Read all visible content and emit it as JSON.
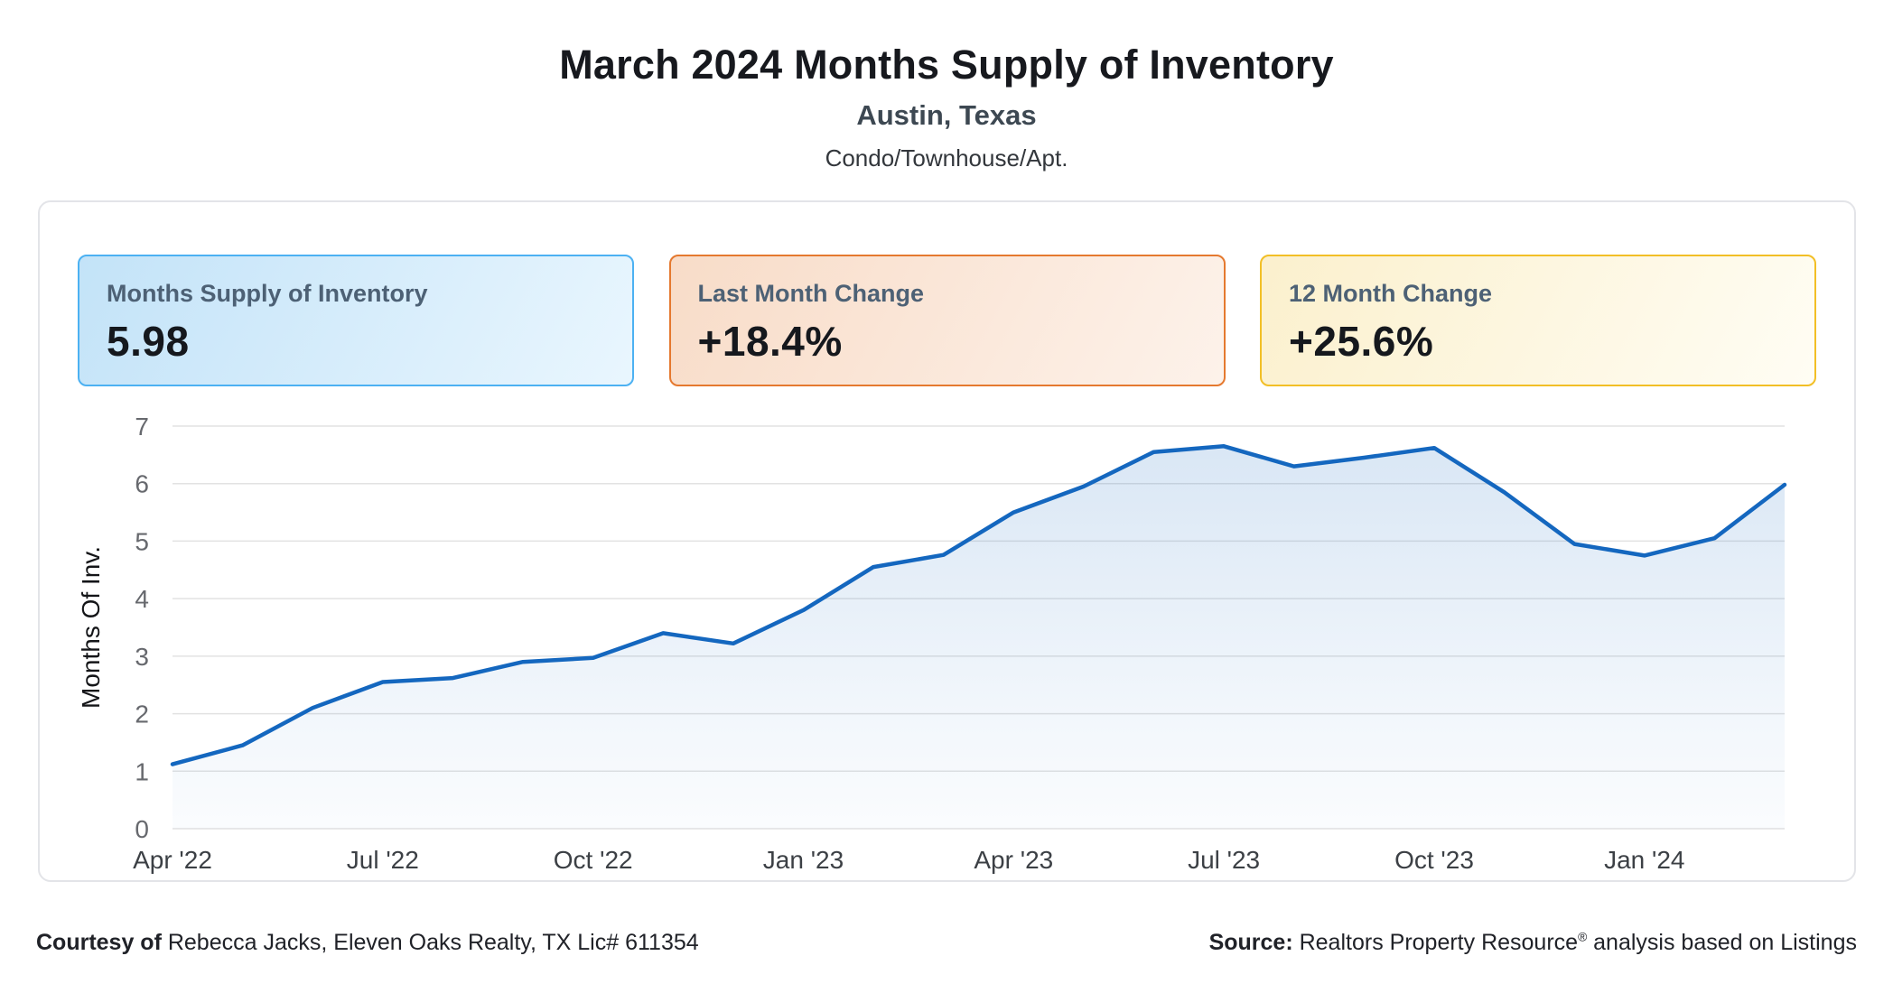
{
  "header": {
    "title": "March 2024 Months Supply of Inventory",
    "subtitle": "Austin, Texas",
    "property_type": "Condo/Townhouse/Apt."
  },
  "stats": [
    {
      "label": "Months Supply of Inventory",
      "value": "5.98"
    },
    {
      "label": "Last Month Change",
      "value": "+18.4%"
    },
    {
      "label": "12 Month Change",
      "value": "+25.6%"
    }
  ],
  "colors": {
    "accent-line": "#1467bf",
    "grid": "#e2e2e2",
    "label": "#4d6175",
    "value": "#15181d",
    "blue-border": "#4cb1f2",
    "blue-bg-1": "#c3e3f8",
    "blue-bg-2": "#e9f6fe",
    "orange-border": "#e5792f",
    "orange-bg-1": "#f8dcc8",
    "orange-bg-2": "#fdf2ea",
    "yellow-border": "#f2bf26",
    "yellow-bg-1": "#fbf0cd",
    "yellow-bg-2": "#fffdf4"
  },
  "chart_data": {
    "type": "area",
    "title": "March 2024 Months Supply of Inventory — Austin, Texas — Condo/Townhouse/Apt.",
    "x": [
      "Apr '22",
      "May '22",
      "Jun '22",
      "Jul '22",
      "Aug '22",
      "Sep '22",
      "Oct '22",
      "Nov '22",
      "Dec '22",
      "Jan '23",
      "Feb '23",
      "Mar '23",
      "Apr '23",
      "May '23",
      "Jun '23",
      "Jul '23",
      "Aug '23",
      "Sep '23",
      "Oct '23",
      "Nov '23",
      "Dec '23",
      "Jan '24",
      "Feb '24",
      "Mar '24"
    ],
    "values": [
      1.12,
      1.45,
      2.1,
      2.55,
      2.62,
      2.9,
      2.97,
      3.4,
      3.22,
      3.8,
      4.55,
      4.76,
      5.5,
      5.95,
      6.55,
      6.65,
      6.3,
      6.45,
      6.62,
      5.85,
      4.95,
      4.75,
      5.05,
      5.98
    ],
    "xlabel": "",
    "ylabel": "Months Of Inv.",
    "ylim": [
      0,
      7
    ],
    "yticks": [
      0,
      1,
      2,
      3,
      4,
      5,
      6,
      7
    ],
    "xticks": [
      {
        "i": 0,
        "label": "Apr '22"
      },
      {
        "i": 3,
        "label": "Jul '22"
      },
      {
        "i": 6,
        "label": "Oct '22"
      },
      {
        "i": 9,
        "label": "Jan '23"
      },
      {
        "i": 12,
        "label": "Apr '23"
      },
      {
        "i": 15,
        "label": "Jul '23"
      },
      {
        "i": 18,
        "label": "Oct '23"
      },
      {
        "i": 21,
        "label": "Jan '24"
      }
    ],
    "grid": true,
    "legend": false
  },
  "footer": {
    "courtesy_prefix": "Courtesy of",
    "courtesy_text": " Rebecca Jacks, Eleven Oaks Realty, TX Lic# 611354",
    "source_prefix": "Source:",
    "source_name": " Realtors Property Resource",
    "source_reg": "®",
    "source_suffix": " analysis based on Listings"
  }
}
